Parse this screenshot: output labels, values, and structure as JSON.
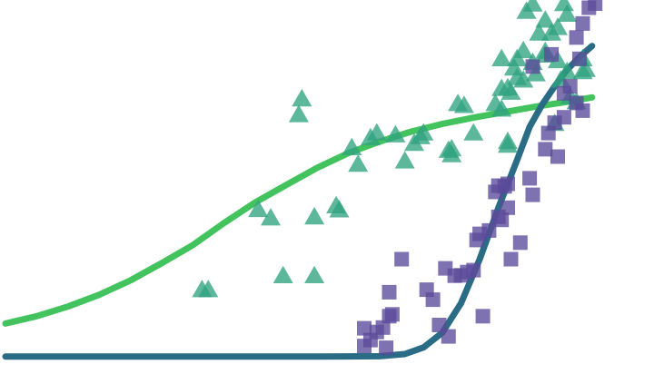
{
  "chart_data": {
    "type": "scatter",
    "xlim": [
      0,
      100
    ],
    "ylim": [
      0,
      100
    ],
    "grid": false,
    "legend": "none",
    "axes_visible": false,
    "colors": {
      "triangle_points": "#2fa37f",
      "square_points": "#5b4a9a",
      "green_curve": "#42c35e",
      "teal_curve": "#2a6b86"
    },
    "series": [
      {
        "kind": "scatter",
        "marker": "triangle",
        "color_key": "triangle_points",
        "points": [
          [
            31.5,
            21.7
          ],
          [
            32.5,
            21.7
          ],
          [
            44.5,
            25.5
          ],
          [
            49.5,
            25.5
          ],
          [
            40.5,
            43.5
          ],
          [
            42.5,
            41.2
          ],
          [
            49.5,
            41.5
          ],
          [
            53.5,
            43.4
          ],
          [
            53.0,
            44.5
          ],
          [
            47.0,
            69.3
          ],
          [
            47.5,
            73.6
          ],
          [
            55.5,
            60.3
          ],
          [
            56.5,
            55.8
          ],
          [
            58.5,
            63.0
          ],
          [
            59.5,
            64.3
          ],
          [
            62.5,
            63.8
          ],
          [
            64.0,
            56.7
          ],
          [
            65.5,
            61.5
          ],
          [
            66.5,
            63.3
          ],
          [
            67.0,
            64.3
          ],
          [
            71.0,
            59.6
          ],
          [
            71.5,
            58.4
          ],
          [
            72.5,
            72.3
          ],
          [
            71.5,
            60.0
          ],
          [
            73.5,
            71.8
          ],
          [
            75.0,
            64.3
          ],
          [
            78.5,
            72.3
          ],
          [
            79.5,
            70.8
          ],
          [
            80.5,
            61.0
          ],
          [
            81.0,
            75.4
          ],
          [
            82.0,
            79.4
          ],
          [
            83.0,
            78.7
          ],
          [
            84.5,
            83.5
          ],
          [
            85.0,
            80.4
          ],
          [
            86.5,
            86.5
          ],
          [
            88.0,
            66.9
          ],
          [
            89.0,
            78.7
          ],
          [
            90.5,
            74.2
          ],
          [
            91.5,
            72.8
          ],
          [
            92.5,
            84.5
          ],
          [
            93.0,
            81.6
          ],
          [
            79.5,
            84.5
          ],
          [
            81.5,
            82.0
          ],
          [
            80.5,
            76.6
          ],
          [
            83.5,
            97.4
          ],
          [
            84.5,
            99.4
          ],
          [
            85.5,
            91.5
          ],
          [
            86.5,
            95.0
          ],
          [
            87.5,
            91.5
          ],
          [
            88.5,
            93.0
          ],
          [
            89.5,
            99.5
          ],
          [
            90.0,
            96.6
          ],
          [
            86.5,
            85.5
          ],
          [
            88.5,
            84.0
          ],
          [
            90.0,
            81.0
          ],
          [
            83.0,
            86.7
          ],
          [
            82.0,
            84.5
          ],
          [
            80.5,
            62.0
          ],
          [
            79.5,
            76.4
          ],
          [
            92.5,
            81.0
          ]
        ]
      },
      {
        "kind": "scatter",
        "marker": "square",
        "color_key": "square_points",
        "points": [
          [
            57.5,
            11.2
          ],
          [
            58.5,
            8.0
          ],
          [
            59.5,
            10.2
          ],
          [
            60.5,
            11.4
          ],
          [
            61.0,
            5.9
          ],
          [
            61.5,
            14.5
          ],
          [
            57.5,
            6.4
          ],
          [
            61.5,
            21.0
          ],
          [
            62.0,
            15.0
          ],
          [
            63.5,
            30.0
          ],
          [
            67.5,
            21.7
          ],
          [
            68.5,
            19.0
          ],
          [
            69.5,
            12.1
          ],
          [
            70.5,
            27.5
          ],
          [
            71.0,
            9.0
          ],
          [
            72.0,
            25.5
          ],
          [
            73.0,
            25.6
          ],
          [
            74.0,
            26.5
          ],
          [
            75.0,
            27.0
          ],
          [
            75.5,
            35.2
          ],
          [
            76.0,
            36.9
          ],
          [
            76.5,
            14.5
          ],
          [
            77.5,
            37.8
          ],
          [
            78.5,
            48.3
          ],
          [
            79.5,
            40.7
          ],
          [
            79.0,
            41.5
          ],
          [
            80.0,
            49.8
          ],
          [
            80.5,
            44.0
          ],
          [
            81.0,
            30.0
          ],
          [
            82.5,
            34.5
          ],
          [
            84.0,
            52.0
          ],
          [
            84.5,
            47.5
          ],
          [
            86.5,
            59.9
          ],
          [
            87.0,
            64.3
          ],
          [
            88.5,
            57.9
          ],
          [
            89.5,
            68.6
          ],
          [
            91.5,
            72.5
          ],
          [
            92.5,
            70.4
          ],
          [
            92.0,
            84.5
          ],
          [
            91.5,
            90.3
          ],
          [
            92.5,
            94.1
          ],
          [
            93.5,
            98.4
          ],
          [
            94.5,
            99.5
          ],
          [
            89.5,
            75.1
          ],
          [
            90.5,
            77.0
          ],
          [
            88.0,
            67.1
          ],
          [
            87.5,
            85.7
          ],
          [
            84.5,
            82.4
          ],
          [
            79.0,
            50.0
          ],
          [
            80.5,
            50.5
          ]
        ]
      },
      {
        "kind": "line",
        "color_key": "green_curve",
        "points": [
          [
            0,
            12.5
          ],
          [
            5,
            14.5
          ],
          [
            10,
            17.1
          ],
          [
            15,
            20.3
          ],
          [
            20,
            24.2
          ],
          [
            25,
            28.9
          ],
          [
            30,
            33.8
          ],
          [
            35,
            39.8
          ],
          [
            40,
            45.4
          ],
          [
            45,
            50.2
          ],
          [
            50,
            54.9
          ],
          [
            55,
            58.9
          ],
          [
            60,
            62.0
          ],
          [
            65,
            64.7
          ],
          [
            70,
            66.8
          ],
          [
            75,
            68.5
          ],
          [
            80,
            70.0
          ],
          [
            85,
            71.5
          ],
          [
            90,
            72.8
          ],
          [
            94,
            74.0
          ]
        ]
      },
      {
        "kind": "line",
        "color_key": "teal_curve",
        "points": [
          [
            0,
            3.5
          ],
          [
            10,
            3.5
          ],
          [
            20,
            3.5
          ],
          [
            30,
            3.5
          ],
          [
            40,
            3.5
          ],
          [
            50,
            3.5
          ],
          [
            60,
            3.6
          ],
          [
            64,
            4.2
          ],
          [
            67,
            6.0
          ],
          [
            70,
            10.0
          ],
          [
            73,
            18.0
          ],
          [
            76,
            30.0
          ],
          [
            79,
            44.0
          ],
          [
            82,
            57.0
          ],
          [
            84,
            66.0
          ],
          [
            86,
            72.0
          ],
          [
            88,
            77.0
          ],
          [
            90,
            81.5
          ],
          [
            92,
            85.0
          ],
          [
            94,
            88.0
          ]
        ]
      }
    ]
  }
}
